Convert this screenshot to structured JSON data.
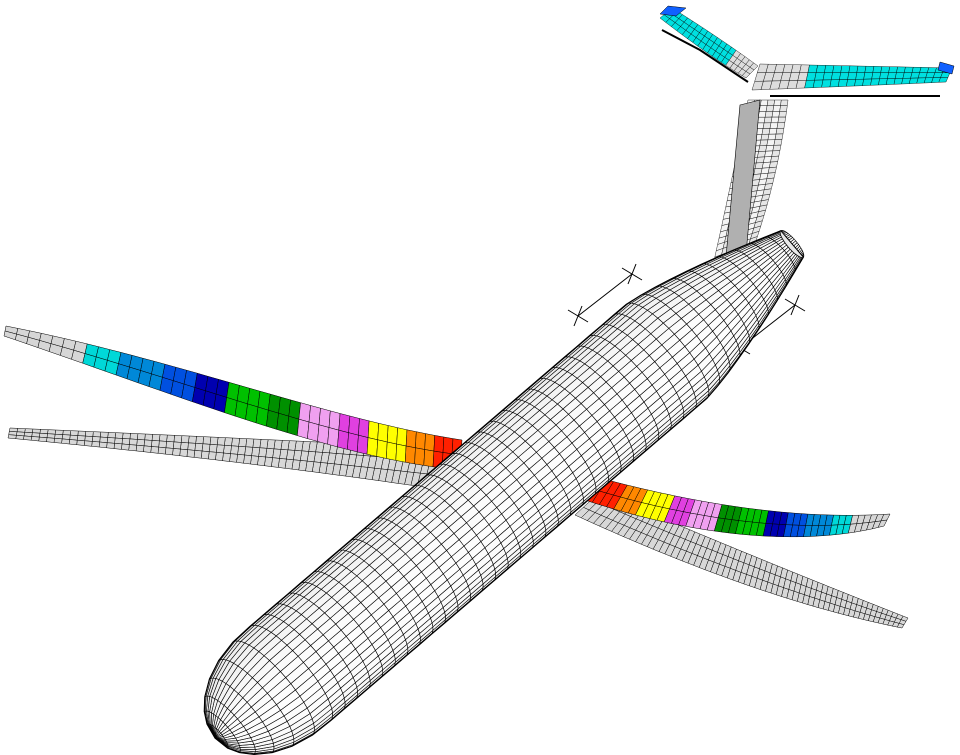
{
  "figure": {
    "background": "#ffffff",
    "mesh_color": "#000000",
    "fuselage_fill": "#f2f2f2",
    "undeformed_wing_fill": "#cfcfcf",
    "deformed_wing_contour_colors": [
      "#00d8d8",
      "#0088d8",
      "#0050e0",
      "#0000b0",
      "#00c000",
      "#009000",
      "#f0a0f0",
      "#e040e0",
      "#ffff00",
      "#ff8800",
      "#ff2000"
    ],
    "tail_contour_colors": [
      "#00e0e0",
      "#1060ff"
    ],
    "wing_deflection_levels": 11
  }
}
